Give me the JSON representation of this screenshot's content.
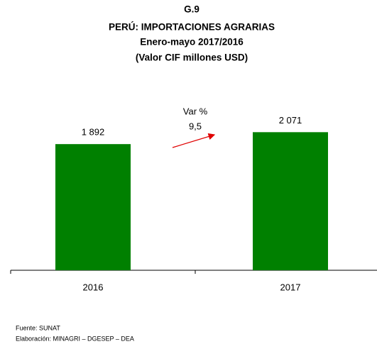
{
  "chart_data": {
    "type": "bar",
    "title": [
      "G.9",
      "PERÚ: IMPORTACIONES AGRARIAS",
      "Enero-mayo 2017/2016",
      "(Valor CIF millones USD)"
    ],
    "categories": [
      "2016",
      "2017"
    ],
    "values": [
      1892,
      2071
    ],
    "value_labels": [
      "1 892",
      "2 071"
    ],
    "color": "#008000",
    "ylim": [
      0,
      2500
    ],
    "annotation": {
      "title": "Var %",
      "text": "9,5"
    },
    "footnotes": [
      "Fuente: SUNAT",
      "Elaboración: MINAGRI – DGESEP – DEA"
    ]
  }
}
